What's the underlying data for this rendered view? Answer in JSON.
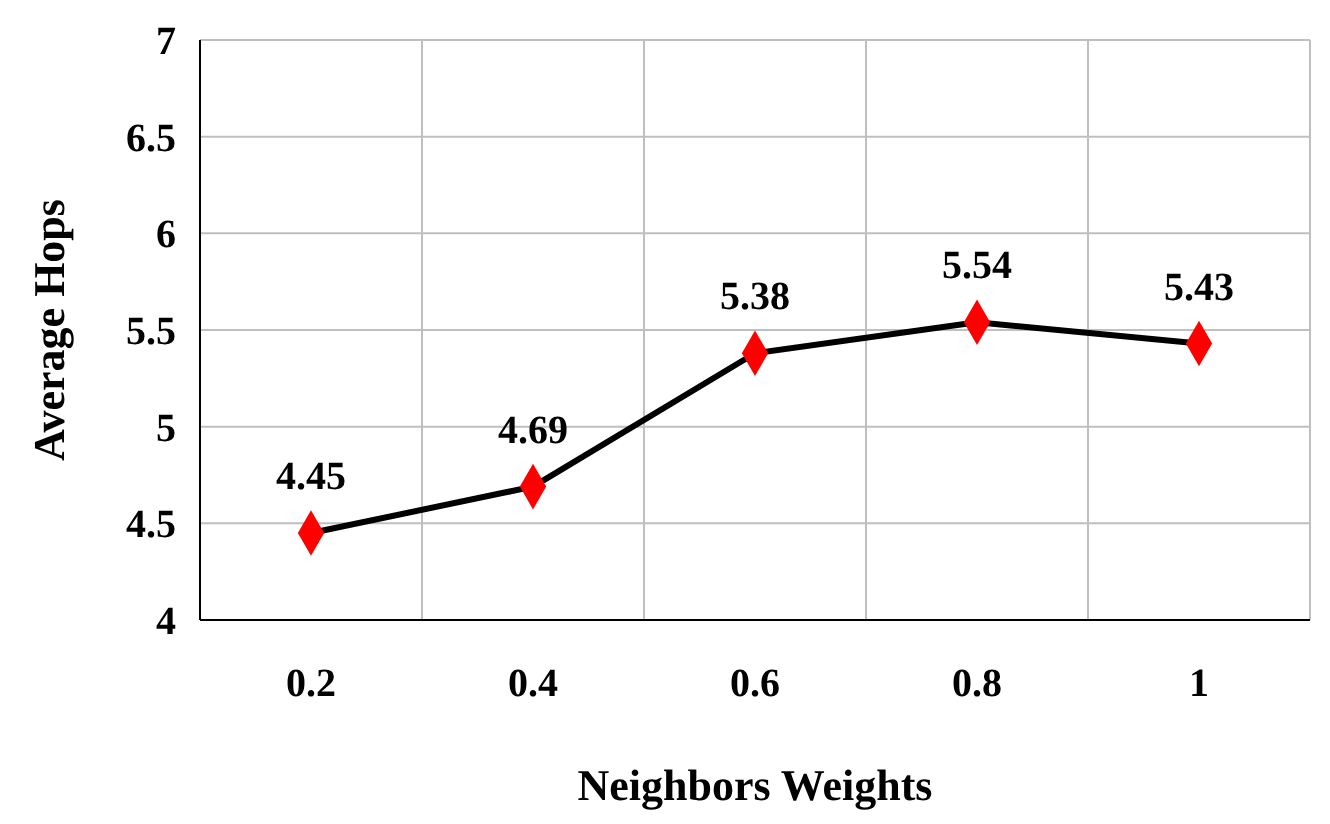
{
  "chart_data": {
    "type": "line",
    "xlabel": "Neighbors Weights",
    "ylabel": "Average Hops",
    "categories": [
      "0.2",
      "0.4",
      "0.6",
      "0.8",
      "1"
    ],
    "series": [
      {
        "color": "#ff0000",
        "values": [
          4.45,
          4.69,
          5.38,
          5.54,
          5.43
        ]
      }
    ],
    "ylim": [
      4,
      7
    ],
    "yticks": [
      4,
      4.5,
      5,
      5.5,
      6,
      6.5,
      7
    ],
    "grid": true,
    "marker": "diamond",
    "line_style": "solid",
    "data_labels": true
  }
}
